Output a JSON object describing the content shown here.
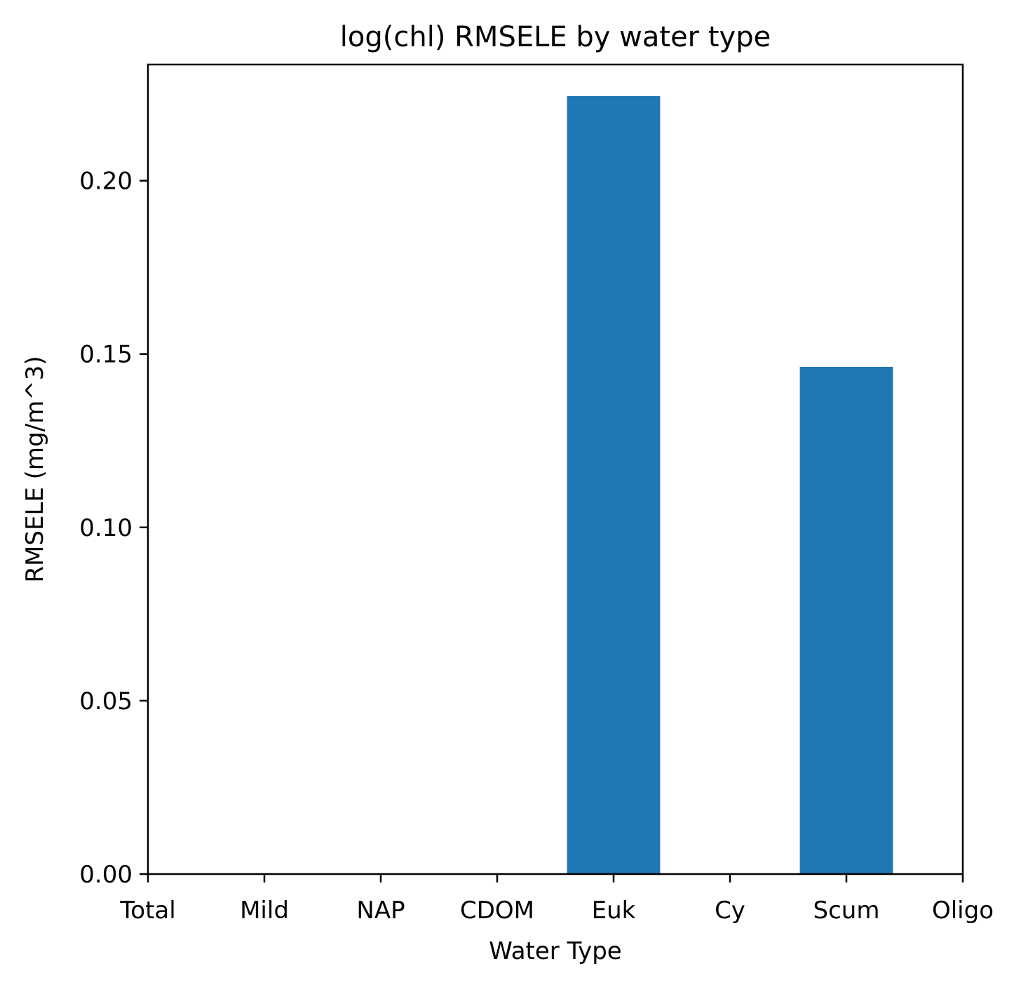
{
  "chart_data": {
    "type": "bar",
    "title": "log(chl) RMSELE by water type",
    "xlabel": "Water Type",
    "ylabel": "RMSELE (mg/m^3)",
    "categories": [
      "Total",
      "Mild",
      "NAP",
      "CDOM",
      "Euk",
      "Cy",
      "Scum",
      "Oligo"
    ],
    "values": [
      0,
      0,
      0,
      0,
      0.2244,
      0,
      0.1463,
      0
    ],
    "ylim": [
      0,
      0.2335
    ],
    "yticks": [
      0.0,
      0.05,
      0.1,
      0.15,
      0.2
    ],
    "ytick_labels": [
      "0.00",
      "0.05",
      "0.10",
      "0.15",
      "0.20"
    ],
    "grid": false,
    "bar_color": "#1f77b4"
  }
}
